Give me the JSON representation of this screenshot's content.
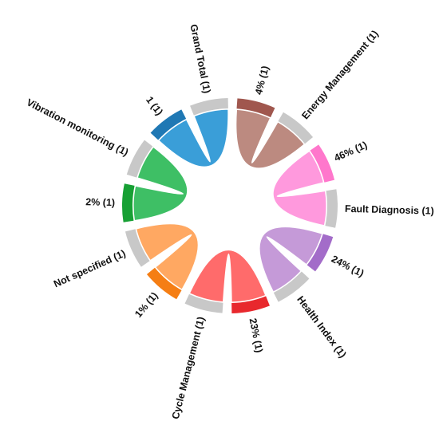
{
  "chart_data": {
    "type": "chord",
    "title": "",
    "sources": [
      {
        "name": "Energy Management (1)",
        "color": "#c8c8c8"
      },
      {
        "name": "Fault Diagnosis (1)",
        "color": "#c8c8c8"
      },
      {
        "name": "Health Index (1)",
        "color": "#c8c8c8"
      },
      {
        "name": "Cycle Management (1)",
        "color": "#c8c8c8"
      },
      {
        "name": "Not specified (1)",
        "color": "#c8c8c8"
      },
      {
        "name": "Vibration monitoring (1)",
        "color": "#c8c8c8"
      },
      {
        "name": "Grand Total (1)",
        "color": "#c8c8c8"
      }
    ],
    "targets": [
      {
        "name": "4% (1)",
        "color": "#a0574e",
        "ribbon_color": "#bc8a80"
      },
      {
        "name": "46% (1)",
        "color": "#ff77cc",
        "ribbon_color": "#ff99dd"
      },
      {
        "name": "24% (1)",
        "color": "#a36cc9",
        "ribbon_color": "#c59ad8"
      },
      {
        "name": "23% (1)",
        "color": "#e8282d",
        "ribbon_color": "#ff6b6b"
      },
      {
        "name": "1% (1)",
        "color": "#f57e14",
        "ribbon_color": "#ffa862"
      },
      {
        "name": "2% (1)",
        "color": "#17a034",
        "ribbon_color": "#3ebf65"
      },
      {
        "name": "1 (1)",
        "color": "#1f78b4",
        "ribbon_color": "#3a9ed8"
      }
    ],
    "links": [
      {
        "source": "Energy Management (1)",
        "target": "4% (1)",
        "value": 1
      },
      {
        "source": "Fault Diagnosis (1)",
        "target": "46% (1)",
        "value": 1
      },
      {
        "source": "Health Index (1)",
        "target": "24% (1)",
        "value": 1
      },
      {
        "source": "Cycle Management (1)",
        "target": "23% (1)",
        "value": 1
      },
      {
        "source": "Not specified (1)",
        "target": "1% (1)",
        "value": 1
      },
      {
        "source": "Vibration monitoring (1)",
        "target": "2% (1)",
        "value": 1
      },
      {
        "source": "Grand Total (1)",
        "target": "1 (1)",
        "value": 1
      }
    ]
  }
}
